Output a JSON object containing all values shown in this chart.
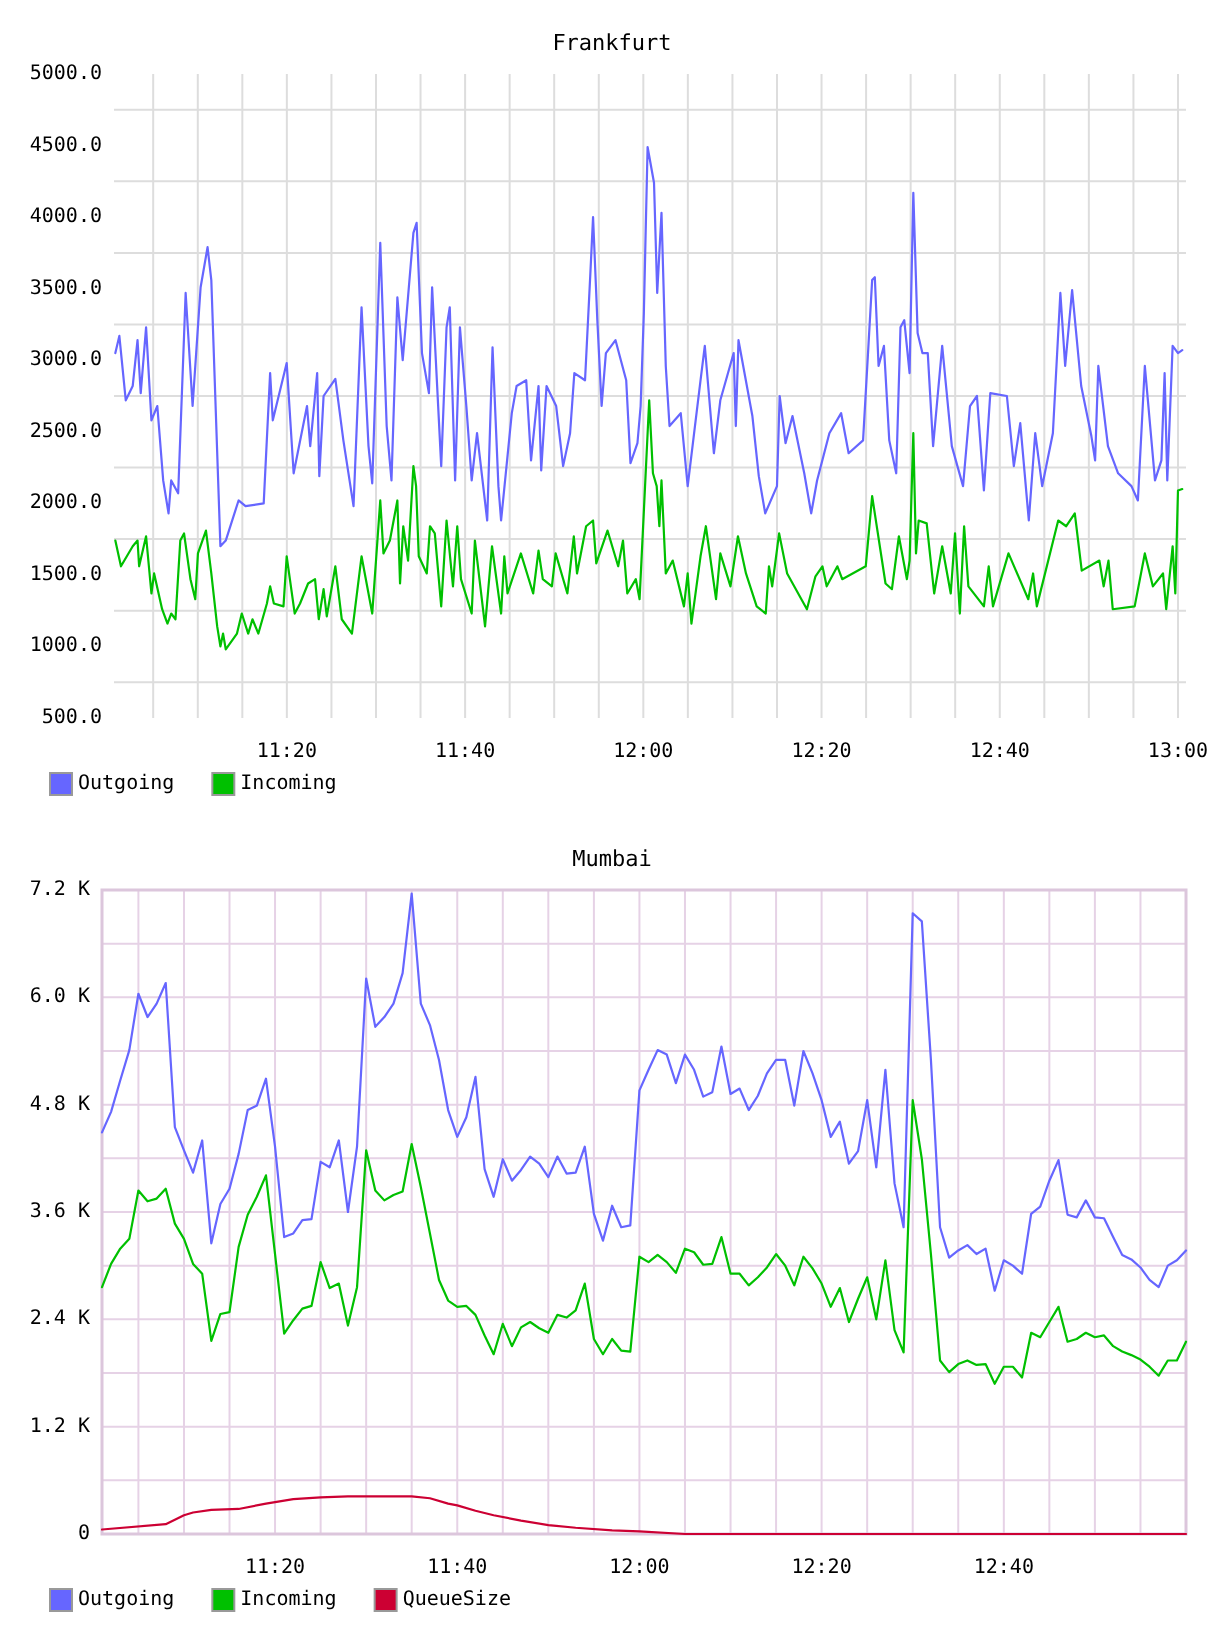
{
  "chart_data": [
    {
      "type": "line",
      "title": "Frankfurt",
      "xlim": [
        11.01,
        13.015
      ],
      "ylim": [
        500,
        5000
      ],
      "xticks": [
        {
          "value": 11.0833,
          "label": null
        },
        {
          "value": 11.1667,
          "label": null
        },
        {
          "value": 11.25,
          "label": null
        },
        {
          "value": 11.3333,
          "label": "11:20"
        },
        {
          "value": 11.4167,
          "label": null
        },
        {
          "value": 11.5,
          "label": null
        },
        {
          "value": 11.5833,
          "label": null
        },
        {
          "value": 11.6667,
          "label": "11:40"
        },
        {
          "value": 11.75,
          "label": null
        },
        {
          "value": 11.8333,
          "label": null
        },
        {
          "value": 11.9167,
          "label": null
        },
        {
          "value": 12,
          "label": "12:00"
        },
        {
          "value": 12.0833,
          "label": null
        },
        {
          "value": 12.1667,
          "label": null
        },
        {
          "value": 12.25,
          "label": null
        },
        {
          "value": 12.3333,
          "label": "12:20"
        },
        {
          "value": 12.4167,
          "label": null
        },
        {
          "value": 12.5,
          "label": null
        },
        {
          "value": 12.5833,
          "label": null
        },
        {
          "value": 12.6667,
          "label": "12:40"
        },
        {
          "value": 12.75,
          "label": null
        },
        {
          "value": 12.8333,
          "label": null
        },
        {
          "value": 12.9167,
          "label": null
        },
        {
          "value": 13,
          "label": "13:00"
        }
      ],
      "yticks": [
        {
          "value": 500,
          "label": "500.0"
        },
        {
          "value": 750,
          "label": null
        },
        {
          "value": 1000,
          "label": "1000.0"
        },
        {
          "value": 1250,
          "label": null
        },
        {
          "value": 1500,
          "label": "1500.0"
        },
        {
          "value": 1750,
          "label": null
        },
        {
          "value": 2000,
          "label": "2000.0"
        },
        {
          "value": 2250,
          "label": null
        },
        {
          "value": 2500,
          "label": "2500.0"
        },
        {
          "value": 2750,
          "label": null
        },
        {
          "value": 3000,
          "label": "3000.0"
        },
        {
          "value": 3250,
          "label": null
        },
        {
          "value": 3500,
          "label": "3500.0"
        },
        {
          "value": 3750,
          "label": null
        },
        {
          "value": 4000,
          "label": "4000.0"
        },
        {
          "value": 4250,
          "label": null
        },
        {
          "value": 4500,
          "label": "4500.0"
        },
        {
          "value": 4750,
          "label": null
        },
        {
          "value": 5000,
          "label": "5000.0"
        }
      ],
      "grid": true,
      "legend": "bottom left",
      "series": [
        {
          "name": "Outgoing",
          "color": "#6666ff",
          "x": [
            11.0125,
            11.02,
            11.032,
            11.045,
            11.054,
            11.06,
            11.07,
            11.08,
            11.091,
            11.102,
            11.112,
            11.117,
            11.13,
            11.144,
            11.157,
            11.172,
            11.185,
            11.192,
            11.209,
            11.219,
            11.243,
            11.256,
            11.29,
            11.302,
            11.307,
            11.333,
            11.346,
            11.371,
            11.377,
            11.39,
            11.394,
            11.402,
            11.424,
            11.439,
            11.458,
            11.473,
            11.486,
            11.493,
            11.508,
            11.52,
            11.529,
            11.54,
            11.55,
            11.57,
            11.576,
            11.586,
            11.599,
            11.605,
            11.622,
            11.632,
            11.638,
            11.648,
            11.657,
            11.669,
            11.679,
            11.689,
            11.708,
            11.718,
            11.729,
            11.734,
            11.754,
            11.763,
            11.781,
            11.79,
            11.804,
            11.809,
            11.819,
            11.837,
            11.85,
            11.863,
            11.871,
            11.891,
            11.901,
            11.906,
            11.914,
            11.922,
            11.93,
            11.948,
            11.968,
            11.976,
            11.989,
            11.995,
            12.001,
            12.008,
            12.02,
            12.026,
            12.034,
            12.042,
            12.049,
            12.07,
            12.083,
            12.095,
            12.107,
            12.115,
            12.132,
            12.144,
            12.169,
            12.173,
            12.178,
            12.204,
            12.216,
            12.228,
            12.25,
            12.255,
            12.266,
            12.279,
            12.301,
            12.314,
            12.325,
            12.348,
            12.37,
            12.384,
            12.411,
            12.428,
            12.433,
            12.44,
            12.45,
            12.46,
            12.473,
            12.481,
            12.488,
            12.498,
            12.505,
            12.513,
            12.522,
            12.532,
            12.542,
            12.559,
            12.577,
            12.598,
            12.611,
            12.624,
            12.637,
            12.649,
            12.68,
            12.693,
            12.705,
            12.721,
            12.733,
            12.746,
            12.766,
            12.78,
            12.789,
            12.802,
            12.819,
            12.838,
            12.845,
            12.851,
            12.869,
            12.888,
            12.913,
            12.925,
            12.938,
            12.957,
            12.969,
            12.975,
            12.98,
            12.99,
            13.0,
            13.008
          ],
          "values": [
            3050,
            3170,
            2720,
            2820,
            3140,
            2770,
            3230,
            2580,
            2680,
            2160,
            1930,
            2160,
            2070,
            3470,
            2680,
            3510,
            3790,
            3560,
            1700,
            1740,
            2020,
            1980,
            2000,
            2910,
            2580,
            2980,
            2210,
            2680,
            2400,
            2910,
            2190,
            2750,
            2870,
            2440,
            1980,
            3370,
            2400,
            2140,
            3820,
            2540,
            2160,
            3440,
            3000,
            3890,
            3960,
            3050,
            2770,
            3510,
            2260,
            3230,
            3370,
            2160,
            3230,
            2680,
            2160,
            2490,
            1880,
            3090,
            2120,
            1880,
            2630,
            2820,
            2860,
            2300,
            2820,
            2230,
            2820,
            2680,
            2260,
            2490,
            2910,
            2860,
            3610,
            4000,
            3280,
            2680,
            3050,
            3140,
            2860,
            2280,
            2420,
            2680,
            3330,
            4490,
            4240,
            3470,
            4030,
            2960,
            2540,
            2630,
            2120,
            2490,
            2860,
            3100,
            2350,
            2720,
            3050,
            2540,
            3140,
            2610,
            2190,
            1930,
            2120,
            2750,
            2420,
            2610,
            2210,
            1930,
            2160,
            2490,
            2630,
            2350,
            2440,
            3560,
            3580,
            2960,
            3100,
            2440,
            2210,
            3230,
            3280,
            2910,
            4170,
            3190,
            3050,
            3050,
            2400,
            3100,
            2400,
            2120,
            2680,
            2750,
            2090,
            2770,
            2750,
            2260,
            2560,
            1880,
            2490,
            2120,
            2490,
            3470,
            2960,
            3490,
            2820,
            2470,
            2300,
            2960,
            2400,
            2210,
            2120,
            2020,
            2960,
            2160,
            2300,
            2910,
            2160,
            3100,
            3050,
            3070
          ]
        },
        {
          "name": "Incoming",
          "color": "#00c000",
          "x": [
            11.0125,
            11.023,
            11.045,
            11.054,
            11.057,
            11.07,
            11.08,
            11.085,
            11.1,
            11.11,
            11.117,
            11.125,
            11.134,
            11.141,
            11.153,
            11.162,
            11.167,
            11.182,
            11.192,
            11.203,
            11.209,
            11.214,
            11.219,
            11.24,
            11.249,
            11.261,
            11.269,
            11.28,
            11.296,
            11.302,
            11.309,
            11.327,
            11.333,
            11.348,
            11.358,
            11.373,
            11.386,
            11.393,
            11.402,
            11.408,
            11.424,
            11.436,
            11.455,
            11.473,
            11.493,
            11.508,
            11.514,
            11.526,
            11.533,
            11.54,
            11.545,
            11.551,
            11.56,
            11.57,
            11.575,
            11.58,
            11.595,
            11.601,
            11.61,
            11.622,
            11.632,
            11.644,
            11.652,
            11.659,
            11.679,
            11.685,
            11.704,
            11.717,
            11.734,
            11.74,
            11.746,
            11.771,
            11.794,
            11.804,
            11.812,
            11.829,
            11.836,
            11.858,
            11.87,
            11.876,
            11.893,
            11.906,
            11.912,
            11.933,
            11.953,
            11.962,
            11.97,
            11.986,
            11.993,
            11.999,
            12.011,
            12.018,
            12.025,
            12.03,
            12.034,
            12.042,
            12.055,
            12.076,
            12.083,
            12.09,
            12.107,
            12.117,
            12.136,
            12.144,
            12.163,
            12.177,
            12.192,
            12.212,
            12.229,
            12.235,
            12.241,
            12.254,
            12.269,
            12.306,
            12.322,
            12.335,
            12.343,
            12.363,
            12.372,
            12.416,
            12.428,
            12.453,
            12.465,
            12.478,
            12.493,
            12.498,
            12.505,
            12.51,
            12.515,
            12.53,
            12.544,
            12.559,
            12.575,
            12.583,
            12.592,
            12.6,
            12.608,
            12.637,
            12.646,
            12.654,
            12.683,
            12.72,
            12.729,
            12.736,
            12.776,
            12.791,
            12.807,
            12.82,
            12.853,
            12.861,
            12.87,
            12.878,
            12.919,
            12.938,
            12.953,
            12.972,
            12.978,
            12.99,
            12.995,
            13.0,
            13.008
          ],
          "values": [
            1740,
            1560,
            1700,
            1740,
            1560,
            1770,
            1370,
            1510,
            1260,
            1160,
            1230,
            1190,
            1740,
            1790,
            1470,
            1330,
            1650,
            1810,
            1510,
            1140,
            1000,
            1090,
            980,
            1090,
            1230,
            1090,
            1190,
            1090,
            1300,
            1420,
            1300,
            1280,
            1630,
            1230,
            1300,
            1440,
            1470,
            1190,
            1400,
            1210,
            1560,
            1190,
            1090,
            1630,
            1230,
            2020,
            1650,
            1740,
            1880,
            2020,
            1440,
            1840,
            1600,
            2260,
            2120,
            1630,
            1510,
            1840,
            1790,
            1280,
            1880,
            1420,
            1840,
            1470,
            1230,
            1740,
            1140,
            1700,
            1230,
            1630,
            1370,
            1650,
            1370,
            1670,
            1470,
            1420,
            1650,
            1370,
            1770,
            1510,
            1840,
            1880,
            1580,
            1810,
            1560,
            1740,
            1370,
            1470,
            1330,
            1790,
            2720,
            2210,
            2120,
            1840,
            2160,
            1510,
            1600,
            1280,
            1510,
            1160,
            1630,
            1840,
            1330,
            1650,
            1420,
            1770,
            1510,
            1280,
            1230,
            1560,
            1420,
            1790,
            1510,
            1260,
            1490,
            1560,
            1420,
            1560,
            1470,
            1560,
            2050,
            1440,
            1400,
            1770,
            1470,
            1600,
            2490,
            1650,
            1880,
            1860,
            1370,
            1700,
            1370,
            1790,
            1230,
            1840,
            1420,
            1280,
            1560,
            1280,
            1650,
            1330,
            1510,
            1280,
            1880,
            1840,
            1930,
            1530,
            1600,
            1420,
            1600,
            1260,
            1280,
            1650,
            1420,
            1510,
            1260,
            1700,
            1370,
            2090,
            2100
          ]
        }
      ]
    },
    {
      "type": "line",
      "title": "Mumbai",
      "x": [
        11.0167,
        11.0333,
        11.05,
        11.0667,
        11.0833,
        11.1,
        11.1167,
        11.1333,
        11.15,
        11.1667,
        11.1833,
        11.2,
        11.2167,
        11.2333,
        11.25,
        11.2667,
        11.2833,
        11.3,
        11.3167,
        11.3333,
        11.35,
        11.3667,
        11.3833,
        11.4,
        11.4167,
        11.4333,
        11.45,
        11.4667,
        11.4833,
        11.5,
        11.5167,
        11.5333,
        11.55,
        11.5667,
        11.5833,
        11.6,
        11.6167,
        11.6333,
        11.65,
        11.6667,
        11.6833,
        11.7,
        11.7167,
        11.7333,
        11.75,
        11.7667,
        11.7833,
        11.8,
        11.8167,
        11.8333,
        11.85,
        11.8667,
        11.8833,
        11.9,
        11.9167,
        11.9333,
        11.95,
        11.9667,
        11.9833,
        12,
        12.0167,
        12.0333,
        12.05,
        12.0667,
        12.0833,
        12.1,
        12.1167,
        12.1333,
        12.15,
        12.1667,
        12.1833,
        12.2,
        12.2167,
        12.2333,
        12.25,
        12.2667,
        12.2833,
        12.3,
        12.3167,
        12.3333,
        12.35,
        12.3667,
        12.3833,
        12.4,
        12.4167,
        12.4333,
        12.45,
        12.4667,
        12.4833,
        12.5,
        12.5167,
        12.5333,
        12.55,
        12.5667,
        12.5833,
        12.6,
        12.6167,
        12.6333,
        12.65,
        12.6667,
        12.6833,
        12.7,
        12.7167,
        12.7333,
        12.75,
        12.7667,
        12.7833,
        12.8,
        12.8167,
        12.8333,
        12.85,
        12.8667,
        12.8833,
        12.9,
        12.9167,
        12.9333,
        12.95,
        12.9667,
        12.9833,
        13
      ],
      "xlim": [
        11.0167,
        13
      ],
      "ylim": [
        0,
        7200
      ],
      "xticks": [
        {
          "value": 11.0833,
          "label": null
        },
        {
          "value": 11.1667,
          "label": null
        },
        {
          "value": 11.25,
          "label": null
        },
        {
          "value": 11.3333,
          "label": "11:20"
        },
        {
          "value": 11.4167,
          "label": null
        },
        {
          "value": 11.5,
          "label": null
        },
        {
          "value": 11.5833,
          "label": null
        },
        {
          "value": 11.6667,
          "label": "11:40"
        },
        {
          "value": 11.75,
          "label": null
        },
        {
          "value": 11.8333,
          "label": null
        },
        {
          "value": 11.9167,
          "label": null
        },
        {
          "value": 12,
          "label": "12:00"
        },
        {
          "value": 12.0833,
          "label": null
        },
        {
          "value": 12.1667,
          "label": null
        },
        {
          "value": 12.25,
          "label": null
        },
        {
          "value": 12.3333,
          "label": "12:20"
        },
        {
          "value": 12.4167,
          "label": null
        },
        {
          "value": 12.5,
          "label": null
        },
        {
          "value": 12.5833,
          "label": null
        },
        {
          "value": 12.6667,
          "label": "12:40"
        },
        {
          "value": 12.75,
          "label": null
        },
        {
          "value": 12.8333,
          "label": null
        },
        {
          "value": 12.9167,
          "label": null
        }
      ],
      "yticks": [
        0,
        {
          "value": 600,
          "label": null
        },
        {
          "value": 1200,
          "label": "1.2 K"
        },
        {
          "value": 1800,
          "label": null
        },
        {
          "value": 2400,
          "label": "2.4 K"
        },
        {
          "value": 3000,
          "label": null
        },
        {
          "value": 3600,
          "label": "3.6 K"
        },
        {
          "value": 4200,
          "label": null
        },
        {
          "value": 4800,
          "label": "4.8 K"
        },
        {
          "value": 5400,
          "label": null
        },
        {
          "value": 6000,
          "label": "6.0 K"
        },
        {
          "value": 6600,
          "label": null
        },
        {
          "value": 7200,
          "label": "7.2 K"
        }
      ],
      "grid": true,
      "legend": "bottom left",
      "series": [
        {
          "name": "Outgoing",
          "color": "#6666ff",
          "values": [
            4490,
            4720,
            5070,
            5410,
            6040,
            5780,
            5930,
            6160,
            4550,
            4290,
            4040,
            4400,
            3250,
            3690,
            3860,
            4250,
            4740,
            4790,
            5090,
            4330,
            3320,
            3360,
            3510,
            3520,
            4160,
            4100,
            4400,
            3600,
            4330,
            6210,
            5670,
            5780,
            5930,
            6270,
            7160,
            5930,
            5690,
            5300,
            4740,
            4440,
            4660,
            5110,
            4080,
            3770,
            4190,
            3950,
            4070,
            4220,
            4140,
            3990,
            4220,
            4030,
            4040,
            4330,
            3580,
            3280,
            3670,
            3430,
            3450,
            4960,
            5190,
            5410,
            5360,
            5040,
            5360,
            5190,
            4890,
            4940,
            5450,
            4920,
            4980,
            4740,
            4900,
            5150,
            5300,
            5300,
            4790,
            5400,
            5150,
            4850,
            4440,
            4610,
            4140,
            4280,
            4850,
            4100,
            5190,
            3920,
            3430,
            6940,
            6850,
            5300,
            3430,
            3090,
            3170,
            3230,
            3130,
            3190,
            2720,
            3060,
            3000,
            2910,
            3580,
            3660,
            3950,
            4180,
            3570,
            3540,
            3730,
            3540,
            3530,
            3320,
            3120,
            3070,
            2980,
            2840,
            2760,
            3000,
            3060,
            3170
          ]
        },
        {
          "name": "Incoming",
          "color": "#00c000",
          "values": [
            2760,
            3020,
            3190,
            3300,
            3840,
            3720,
            3750,
            3860,
            3470,
            3300,
            3020,
            2910,
            2160,
            2460,
            2480,
            3210,
            3570,
            3770,
            4010,
            3130,
            2240,
            2390,
            2520,
            2550,
            3040,
            2750,
            2800,
            2330,
            2760,
            4290,
            3840,
            3730,
            3790,
            3830,
            4360,
            3880,
            3360,
            2840,
            2610,
            2540,
            2550,
            2450,
            2220,
            2010,
            2350,
            2100,
            2310,
            2370,
            2300,
            2250,
            2450,
            2420,
            2500,
            2800,
            2180,
            2010,
            2180,
            2050,
            2040,
            3100,
            3040,
            3120,
            3040,
            2920,
            3190,
            3150,
            3010,
            3020,
            3320,
            2910,
            2910,
            2780,
            2870,
            2980,
            3130,
            3000,
            2780,
            3100,
            2970,
            2800,
            2540,
            2750,
            2370,
            2630,
            2870,
            2400,
            3060,
            2280,
            2030,
            4850,
            4190,
            3130,
            1940,
            1810,
            1900,
            1940,
            1890,
            1900,
            1680,
            1870,
            1870,
            1750,
            2250,
            2200,
            2370,
            2540,
            2150,
            2180,
            2250,
            2200,
            2220,
            2100,
            2040,
            2000,
            1950,
            1870,
            1770,
            1940,
            1940,
            2150
          ]
        },
        {
          "name": "QueueSize",
          "color": "#cc0033",
          "x": [
            11.0167,
            11.1333,
            11.15,
            11.1667,
            11.1833,
            11.2167,
            11.2667,
            11.3167,
            11.3667,
            11.4167,
            11.4667,
            11.5833,
            11.6167,
            11.65,
            11.6667,
            11.7,
            11.7333,
            11.7833,
            11.8333,
            11.8833,
            11.95,
            12,
            12.0833,
            13
          ],
          "values": [
            50,
            110,
            160,
            210,
            240,
            270,
            280,
            340,
            390,
            410,
            420,
            420,
            400,
            340,
            320,
            260,
            210,
            150,
            100,
            70,
            40,
            30,
            0,
            0
          ]
        }
      ]
    }
  ]
}
